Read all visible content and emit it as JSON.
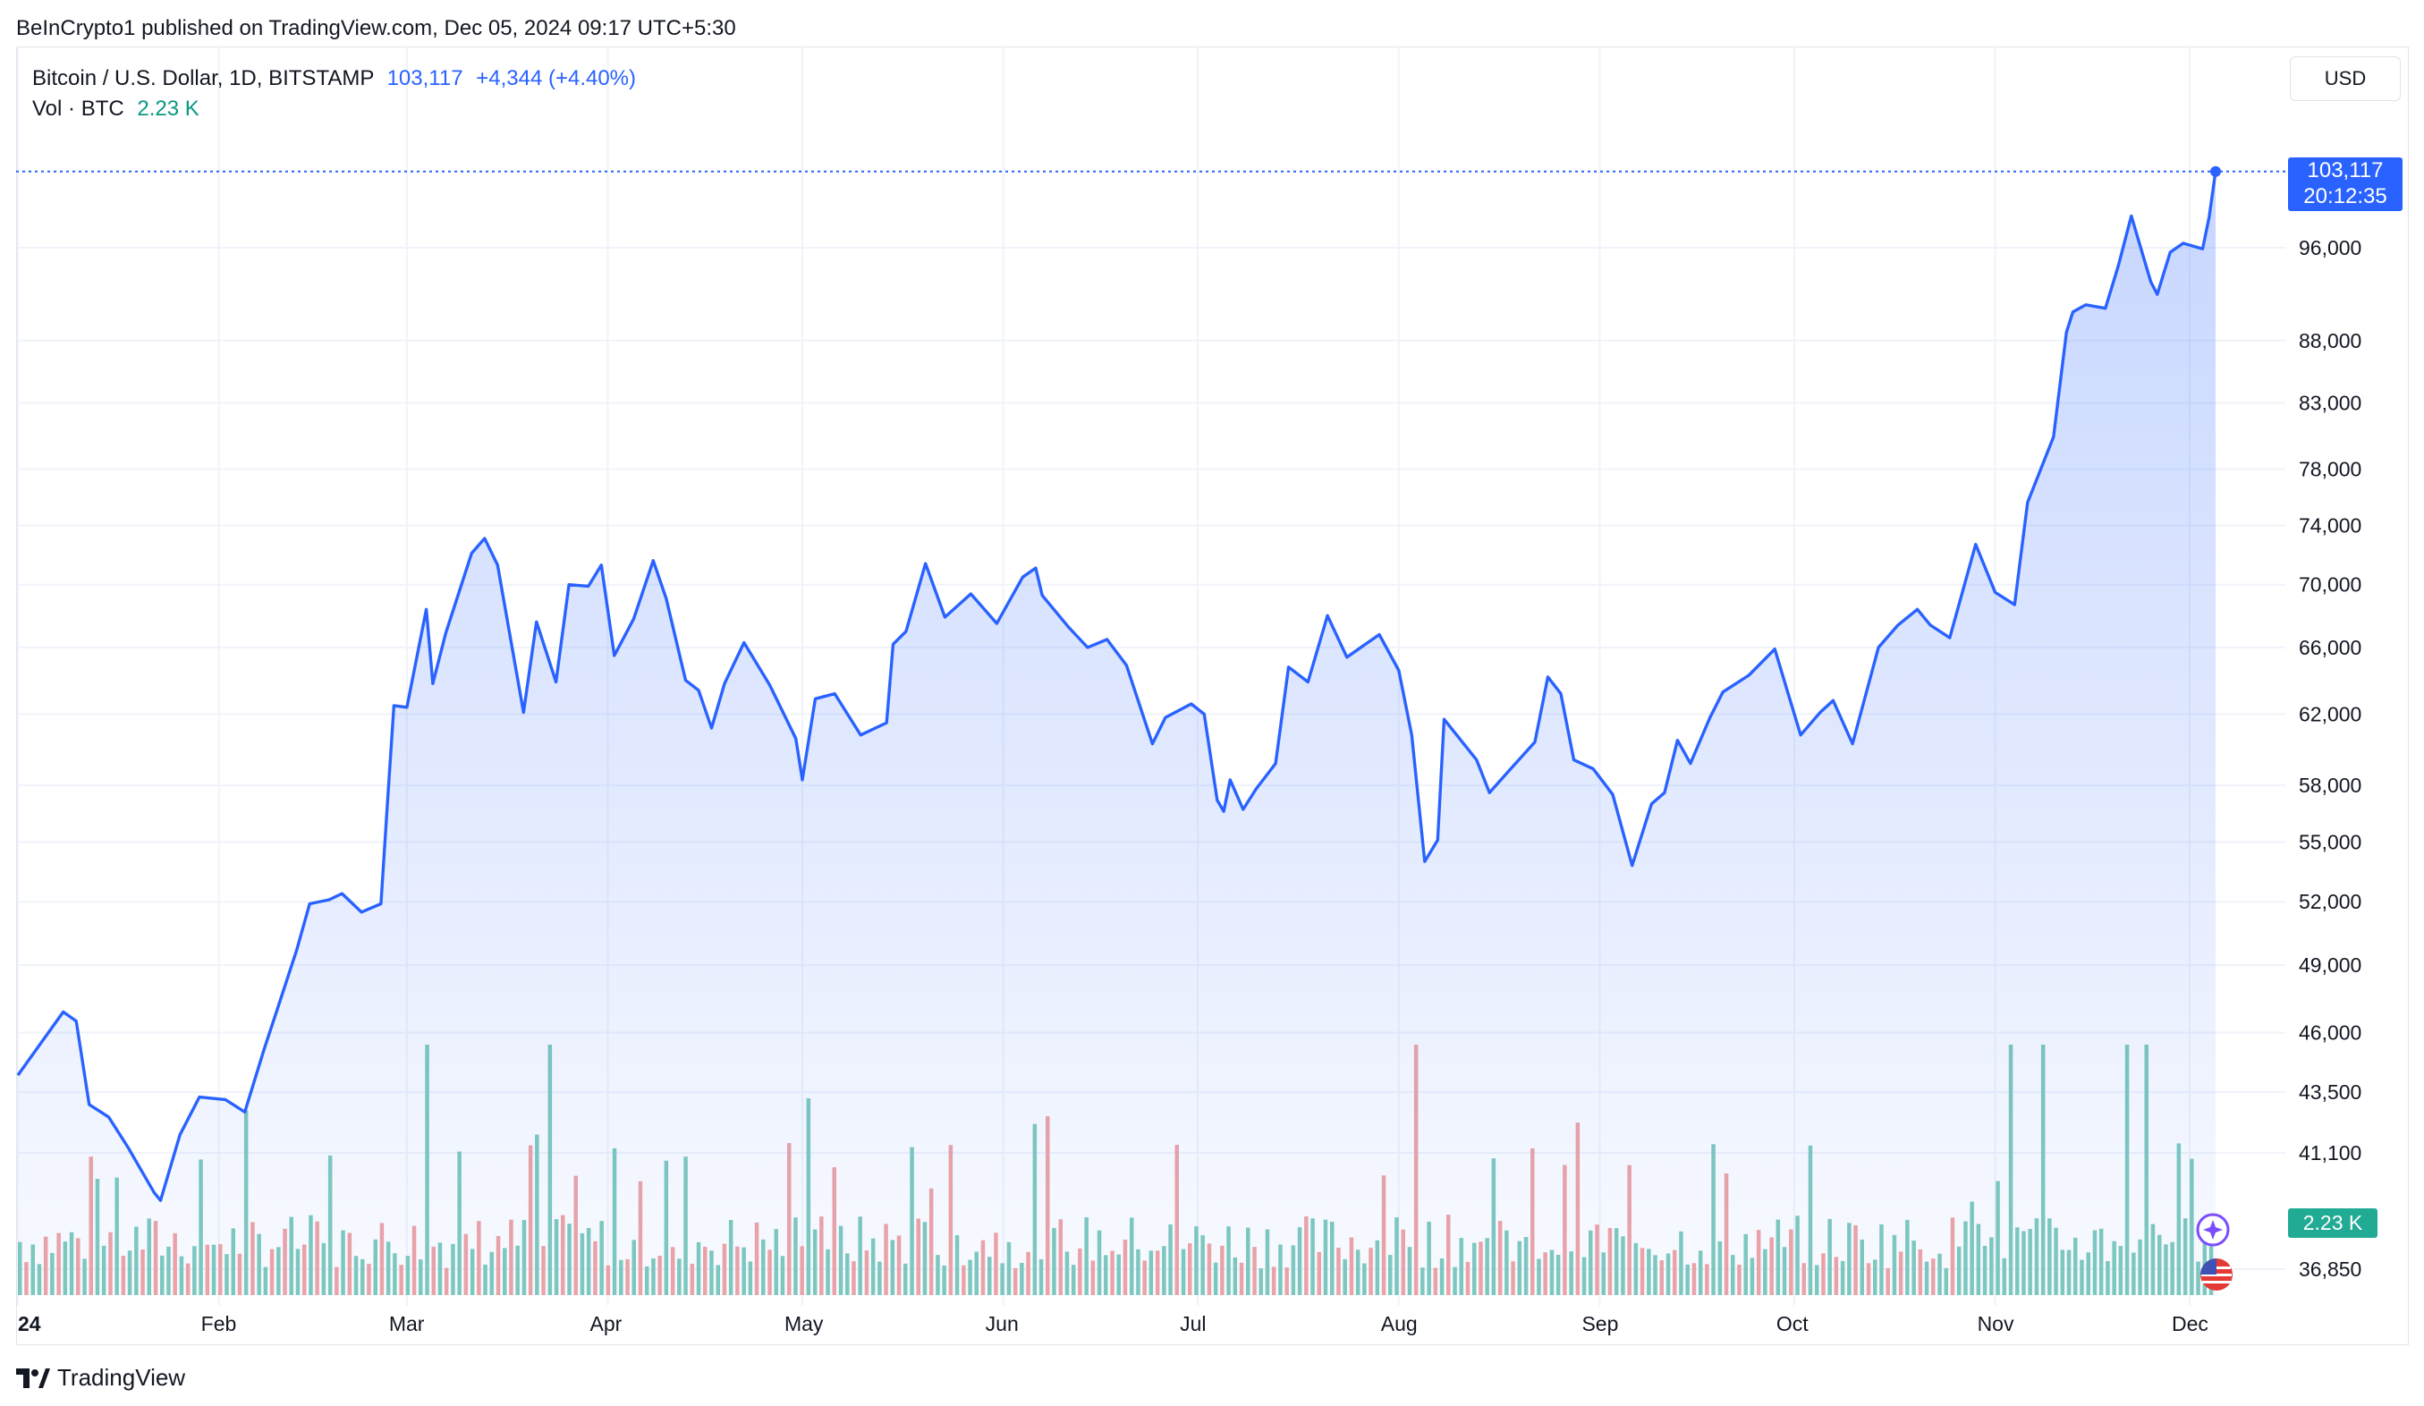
{
  "header": {
    "published": "BeInCrypto1 published on TradingView.com, Dec 05, 2024 09:17 UTC+5:30"
  },
  "legend": {
    "symbol": "Bitcoin / U.S. Dollar, 1D, BITSTAMP",
    "price": "103,117",
    "change": "+4,344 (+4.40%)",
    "volume_label": "Vol · BTC",
    "volume_value": "2.23 K"
  },
  "currency_button": "USD",
  "price_badge": {
    "price": "103,117",
    "countdown": "20:12:35"
  },
  "volume_badge": "2.23 K",
  "footer": {
    "brand": "TradingView"
  },
  "colors": {
    "line": "#2962ff",
    "vol_up": "#7fcbbd",
    "vol_down": "#f0a5a5",
    "price_badge": "#2962ff",
    "vol_badge": "#22ab94"
  },
  "icons": [
    "sparkle-icon",
    "us-flag-icon",
    "tradingview-logo-icon"
  ],
  "chart_data": {
    "type": "line",
    "title": "Bitcoin / U.S. Dollar, 1D, BITSTAMP",
    "y_scale": "log",
    "ylim": [
      35000,
      110000
    ],
    "y_ticks": [
      "96,000",
      "88,000",
      "83,000",
      "78,000",
      "74,000",
      "70,000",
      "66,000",
      "62,000",
      "58,000",
      "55,000",
      "52,000",
      "49,000",
      "46,000",
      "43,500",
      "41,100",
      "36,850"
    ],
    "x_ticks": [
      "24",
      "Feb",
      "Mar",
      "Apr",
      "May",
      "Jun",
      "Jul",
      "Aug",
      "Sep",
      "Oct",
      "Nov",
      "Dec"
    ],
    "series": [
      {
        "name": "Bitcoin / U.S. Dollar",
        "points": [
          [
            "2024-01-01",
            44200
          ],
          [
            "2024-01-08",
            46900
          ],
          [
            "2024-01-10",
            46500
          ],
          [
            "2024-01-12",
            43000
          ],
          [
            "2024-01-15",
            42500
          ],
          [
            "2024-01-18",
            41300
          ],
          [
            "2024-01-22",
            39600
          ],
          [
            "2024-01-23",
            39300
          ],
          [
            "2024-01-26",
            41800
          ],
          [
            "2024-01-29",
            43300
          ],
          [
            "2024-02-02",
            43200
          ],
          [
            "2024-02-05",
            42700
          ],
          [
            "2024-02-08",
            45300
          ],
          [
            "2024-02-10",
            47000
          ],
          [
            "2024-02-13",
            49700
          ],
          [
            "2024-02-15",
            51900
          ],
          [
            "2024-02-18",
            52100
          ],
          [
            "2024-02-20",
            52400
          ],
          [
            "2024-02-23",
            51500
          ],
          [
            "2024-02-26",
            51900
          ],
          [
            "2024-02-27",
            57000
          ],
          [
            "2024-02-28",
            62500
          ],
          [
            "2024-03-01",
            62400
          ],
          [
            "2024-03-04",
            68400
          ],
          [
            "2024-03-05",
            63800
          ],
          [
            "2024-03-07",
            66900
          ],
          [
            "2024-03-11",
            72100
          ],
          [
            "2024-03-13",
            73100
          ],
          [
            "2024-03-15",
            71300
          ],
          [
            "2024-03-19",
            62100
          ],
          [
            "2024-03-21",
            67600
          ],
          [
            "2024-03-24",
            63900
          ],
          [
            "2024-03-26",
            70000
          ],
          [
            "2024-03-29",
            69900
          ],
          [
            "2024-03-31",
            71300
          ],
          [
            "2024-04-02",
            65500
          ],
          [
            "2024-04-05",
            67800
          ],
          [
            "2024-04-08",
            71600
          ],
          [
            "2024-04-10",
            69100
          ],
          [
            "2024-04-13",
            64000
          ],
          [
            "2024-04-15",
            63400
          ],
          [
            "2024-04-17",
            61200
          ],
          [
            "2024-04-19",
            63800
          ],
          [
            "2024-04-22",
            66300
          ],
          [
            "2024-04-26",
            63700
          ],
          [
            "2024-04-30",
            60600
          ],
          [
            "2024-05-01",
            58300
          ],
          [
            "2024-05-03",
            62900
          ],
          [
            "2024-05-06",
            63200
          ],
          [
            "2024-05-10",
            60800
          ],
          [
            "2024-05-14",
            61500
          ],
          [
            "2024-05-15",
            66200
          ],
          [
            "2024-05-17",
            67000
          ],
          [
            "2024-05-20",
            71400
          ],
          [
            "2024-05-23",
            67900
          ],
          [
            "2024-05-27",
            69400
          ],
          [
            "2024-05-31",
            67500
          ],
          [
            "2024-06-04",
            70500
          ],
          [
            "2024-06-06",
            71100
          ],
          [
            "2024-06-07",
            69300
          ],
          [
            "2024-06-11",
            67300
          ],
          [
            "2024-06-14",
            66000
          ],
          [
            "2024-06-17",
            66500
          ],
          [
            "2024-06-20",
            64900
          ],
          [
            "2024-06-24",
            60300
          ],
          [
            "2024-06-26",
            61800
          ],
          [
            "2024-06-30",
            62600
          ],
          [
            "2024-07-02",
            62000
          ],
          [
            "2024-07-04",
            57200
          ],
          [
            "2024-07-05",
            56600
          ],
          [
            "2024-07-06",
            58300
          ],
          [
            "2024-07-08",
            56700
          ],
          [
            "2024-07-10",
            57800
          ],
          [
            "2024-07-13",
            59200
          ],
          [
            "2024-07-15",
            64800
          ],
          [
            "2024-07-18",
            63900
          ],
          [
            "2024-07-21",
            68000
          ],
          [
            "2024-07-24",
            65400
          ],
          [
            "2024-07-29",
            66800
          ],
          [
            "2024-08-01",
            64600
          ],
          [
            "2024-08-03",
            60800
          ],
          [
            "2024-08-05",
            54000
          ],
          [
            "2024-08-07",
            55100
          ],
          [
            "2024-08-08",
            61700
          ],
          [
            "2024-08-13",
            59400
          ],
          [
            "2024-08-15",
            57600
          ],
          [
            "2024-08-18",
            58800
          ],
          [
            "2024-08-22",
            60400
          ],
          [
            "2024-08-24",
            64200
          ],
          [
            "2024-08-26",
            63200
          ],
          [
            "2024-08-28",
            59400
          ],
          [
            "2024-08-31",
            58900
          ],
          [
            "2024-09-03",
            57500
          ],
          [
            "2024-09-06",
            53800
          ],
          [
            "2024-09-09",
            57000
          ],
          [
            "2024-09-11",
            57600
          ],
          [
            "2024-09-13",
            60500
          ],
          [
            "2024-09-15",
            59200
          ],
          [
            "2024-09-18",
            61800
          ],
          [
            "2024-09-20",
            63300
          ],
          [
            "2024-09-24",
            64300
          ],
          [
            "2024-09-28",
            65900
          ],
          [
            "2024-09-30",
            63300
          ],
          [
            "2024-10-02",
            60800
          ],
          [
            "2024-10-05",
            62100
          ],
          [
            "2024-10-07",
            62800
          ],
          [
            "2024-10-10",
            60300
          ],
          [
            "2024-10-14",
            66000
          ],
          [
            "2024-10-17",
            67400
          ],
          [
            "2024-10-20",
            68400
          ],
          [
            "2024-10-22",
            67400
          ],
          [
            "2024-10-25",
            66600
          ],
          [
            "2024-10-29",
            72700
          ],
          [
            "2024-11-01",
            69500
          ],
          [
            "2024-11-04",
            68700
          ],
          [
            "2024-11-06",
            75600
          ],
          [
            "2024-11-10",
            80400
          ],
          [
            "2024-11-12",
            88700
          ],
          [
            "2024-11-13",
            90400
          ],
          [
            "2024-11-15",
            91000
          ],
          [
            "2024-11-18",
            90700
          ],
          [
            "2024-11-20",
            94400
          ],
          [
            "2024-11-22",
            98900
          ],
          [
            "2024-11-25",
            93000
          ],
          [
            "2024-11-26",
            91900
          ],
          [
            "2024-11-28",
            95600
          ],
          [
            "2024-11-30",
            96400
          ],
          [
            "2024-12-03",
            95900
          ],
          [
            "2024-12-04",
            98800
          ],
          [
            "2024-12-05",
            103117
          ]
        ]
      }
    ]
  }
}
